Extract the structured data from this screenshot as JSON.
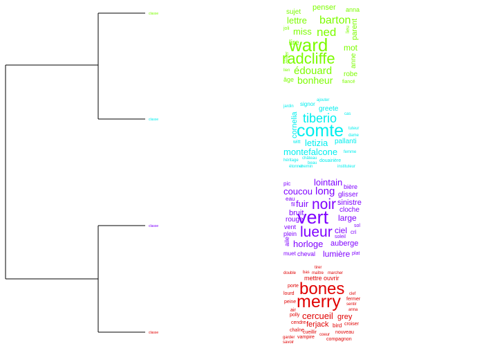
{
  "dendrogram": {
    "leaves": [
      {
        "label": "classe",
        "color": "#7cfc00"
      },
      {
        "label": "classe",
        "color": "#00eeee"
      },
      {
        "label": "classe",
        "color": "#7f00ff"
      },
      {
        "label": "classe",
        "color": "#e00000"
      }
    ]
  },
  "wordclouds": [
    {
      "color": "#7cfc00",
      "words": [
        {
          "text": "radcliffe"
        },
        {
          "text": "ward"
        },
        {
          "text": "barton"
        },
        {
          "text": "ned"
        },
        {
          "text": "édouard"
        },
        {
          "text": "bonheur"
        },
        {
          "text": "miss"
        },
        {
          "text": "lettre"
        },
        {
          "text": "sujet"
        },
        {
          "text": "penser"
        },
        {
          "text": "mot"
        },
        {
          "text": "parent"
        },
        {
          "text": "anna"
        },
        {
          "text": "lire"
        },
        {
          "text": "anne"
        },
        {
          "text": "robe"
        },
        {
          "text": "âge"
        },
        {
          "text": "fiancé"
        },
        {
          "text": "lieu"
        },
        {
          "text": "joli"
        },
        {
          "text": "lien"
        },
        {
          "text": "aimer"
        }
      ]
    },
    {
      "color": "#00eeee",
      "words": [
        {
          "text": "comte"
        },
        {
          "text": "tiberio"
        },
        {
          "text": "letizia"
        },
        {
          "text": "montefalcone"
        },
        {
          "text": "cornelia"
        },
        {
          "text": "greete"
        },
        {
          "text": "pallanti"
        },
        {
          "text": "signor"
        },
        {
          "text": "witt"
        },
        {
          "text": "douairière"
        },
        {
          "text": "héritage"
        },
        {
          "text": "château"
        },
        {
          "text": "chemin"
        },
        {
          "text": "instituteur"
        },
        {
          "text": "cas"
        },
        {
          "text": "jardin"
        },
        {
          "text": "tuteur"
        },
        {
          "text": "dame"
        },
        {
          "text": "femme"
        },
        {
          "text": "beau"
        },
        {
          "text": "étonner"
        },
        {
          "text": "ajouter"
        }
      ]
    },
    {
      "color": "#7f00ff",
      "words": [
        {
          "text": "vert"
        },
        {
          "text": "noir"
        },
        {
          "text": "lueur"
        },
        {
          "text": "lointain"
        },
        {
          "text": "coucou"
        },
        {
          "text": "long"
        },
        {
          "text": "fuir"
        },
        {
          "text": "horloge"
        },
        {
          "text": "auberge"
        },
        {
          "text": "lumière"
        },
        {
          "text": "ciel"
        },
        {
          "text": "large"
        },
        {
          "text": "sinistre"
        },
        {
          "text": "cloche"
        },
        {
          "text": "glisser"
        },
        {
          "text": "bière"
        },
        {
          "text": "bruit"
        },
        {
          "text": "rouge"
        },
        {
          "text": "vent"
        },
        {
          "text": "plein"
        },
        {
          "text": "cheval"
        },
        {
          "text": "muet"
        },
        {
          "text": "eau"
        },
        {
          "text": "pic"
        },
        {
          "text": "soleil"
        },
        {
          "text": "aile"
        },
        {
          "text": "sol"
        },
        {
          "text": "fil"
        },
        {
          "text": "cri"
        },
        {
          "text": "plat"
        }
      ]
    },
    {
      "color": "#e00000",
      "words": [
        {
          "text": "merry"
        },
        {
          "text": "bones"
        },
        {
          "text": "cercueil"
        },
        {
          "text": "ferjack"
        },
        {
          "text": "grey"
        },
        {
          "text": "mettre"
        },
        {
          "text": "ouvrir"
        },
        {
          "text": "bird"
        },
        {
          "text": "nouveau"
        },
        {
          "text": "croiser"
        },
        {
          "text": "compagnon"
        },
        {
          "text": "vampire"
        },
        {
          "text": "cueillir"
        },
        {
          "text": "coeur"
        },
        {
          "text": "marcher"
        },
        {
          "text": "chaîne"
        },
        {
          "text": "porte"
        },
        {
          "text": "peine"
        },
        {
          "text": "lourd"
        },
        {
          "text": "fermer"
        },
        {
          "text": "sentir"
        },
        {
          "text": "anna"
        },
        {
          "text": "double"
        },
        {
          "text": "clef"
        },
        {
          "text": "maître"
        },
        {
          "text": "polly"
        },
        {
          "text": "cendre"
        },
        {
          "text": "air"
        },
        {
          "text": "garder"
        },
        {
          "text": "savoir"
        },
        {
          "text": "tirer"
        },
        {
          "text": "bas"
        }
      ]
    }
  ]
}
